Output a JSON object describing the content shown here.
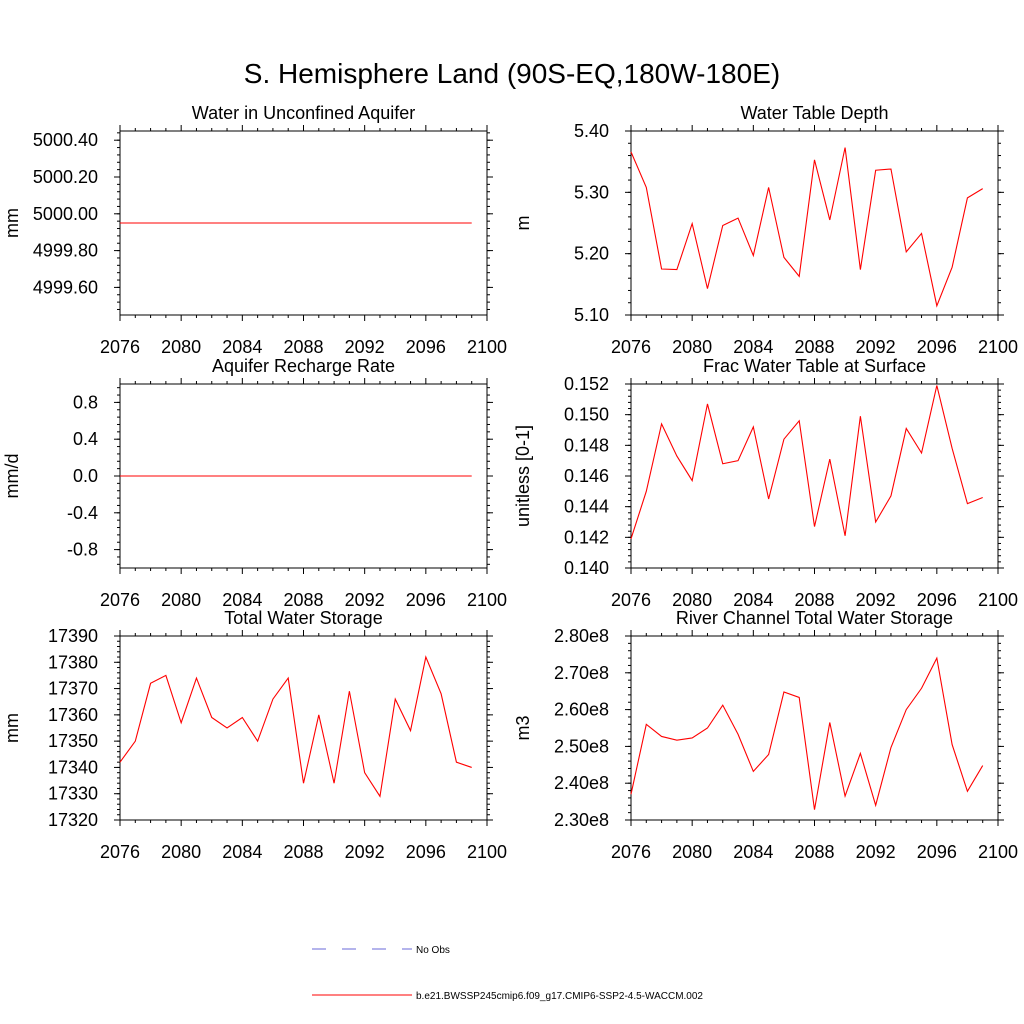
{
  "figure": {
    "title": "S. Hemisphere Land (90S-EQ,180W-180E)"
  },
  "legend": {
    "items": [
      {
        "label": "No Obs",
        "style": "dashed",
        "color": "#6a6ad8"
      },
      {
        "label": "b.e21.BWSSP245cmip6.f09_g17.CMIP6-SSP2-4.5-WACCM.002",
        "style": "solid",
        "color": "#ff0000"
      }
    ]
  },
  "chart_data": [
    {
      "type": "line",
      "title": "Water in Unconfined Aquifer",
      "xlabel": "",
      "ylabel": "mm",
      "xlim": [
        2076,
        2100
      ],
      "ylim": [
        4999.45,
        5000.45
      ],
      "xticks": [
        2076,
        2080,
        2084,
        2088,
        2092,
        2096,
        2100
      ],
      "xtick_labels": [
        "2076",
        "2080",
        "2084",
        "2088",
        "2092",
        "2096",
        "2100"
      ],
      "yticks": [
        4999.6,
        4999.8,
        5000.0,
        5000.2,
        5000.4
      ],
      "ytick_labels": [
        "4999.60",
        "4999.80",
        "5000.00",
        "5000.20",
        "5000.40"
      ],
      "series": [
        {
          "name": "b.e21.BWSSP245cmip6.f09_g17.CMIP6-SSP2-4.5-WACCM.002",
          "color": "#ff0000",
          "x": [
            2076,
            2077,
            2078,
            2079,
            2080,
            2081,
            2082,
            2083,
            2084,
            2085,
            2086,
            2087,
            2088,
            2089,
            2090,
            2091,
            2092,
            2093,
            2094,
            2095,
            2096,
            2097,
            2098,
            2099
          ],
          "y": [
            4999.95,
            4999.95,
            4999.95,
            4999.95,
            4999.95,
            4999.95,
            4999.95,
            4999.95,
            4999.95,
            4999.95,
            4999.95,
            4999.95,
            4999.95,
            4999.95,
            4999.95,
            4999.95,
            4999.95,
            4999.95,
            4999.95,
            4999.95,
            4999.95,
            4999.95,
            4999.95,
            4999.95
          ]
        }
      ]
    },
    {
      "type": "line",
      "title": "Water Table Depth",
      "xlabel": "",
      "ylabel": "m",
      "xlim": [
        2076,
        2100
      ],
      "ylim": [
        5.1,
        5.4
      ],
      "xticks": [
        2076,
        2080,
        2084,
        2088,
        2092,
        2096,
        2100
      ],
      "xtick_labels": [
        "2076",
        "2080",
        "2084",
        "2088",
        "2092",
        "2096",
        "2100"
      ],
      "yticks": [
        5.1,
        5.2,
        5.3,
        5.4
      ],
      "ytick_labels": [
        "5.10",
        "5.20",
        "5.30",
        "5.40"
      ],
      "series": [
        {
          "name": "b.e21.BWSSP245cmip6.f09_g17.CMIP6-SSP2-4.5-WACCM.002",
          "color": "#ff0000",
          "x": [
            2076,
            2077,
            2078,
            2079,
            2080,
            2081,
            2082,
            2083,
            2084,
            2085,
            2086,
            2087,
            2088,
            2089,
            2090,
            2091,
            2092,
            2093,
            2094,
            2095,
            2096,
            2097,
            2098,
            2099
          ],
          "y": [
            5.366,
            5.308,
            5.175,
            5.174,
            5.249,
            5.143,
            5.246,
            5.258,
            5.197,
            5.308,
            5.194,
            5.163,
            5.353,
            5.255,
            5.373,
            5.174,
            5.336,
            5.338,
            5.203,
            5.233,
            5.115,
            5.178,
            5.291,
            5.306
          ]
        }
      ]
    },
    {
      "type": "line",
      "title": "Aquifer Recharge Rate",
      "xlabel": "",
      "ylabel": "mm/d",
      "xlim": [
        2076,
        2100
      ],
      "ylim": [
        -1.0,
        1.0
      ],
      "xticks": [
        2076,
        2080,
        2084,
        2088,
        2092,
        2096,
        2100
      ],
      "xtick_labels": [
        "2076",
        "2080",
        "2084",
        "2088",
        "2092",
        "2096",
        "2100"
      ],
      "yticks": [
        -0.8,
        -0.4,
        0.0,
        0.4,
        0.8
      ],
      "ytick_labels": [
        "-0.8",
        "-0.4",
        "0.0",
        "0.4",
        "0.8"
      ],
      "series": [
        {
          "name": "b.e21.BWSSP245cmip6.f09_g17.CMIP6-SSP2-4.5-WACCM.002",
          "color": "#ff0000",
          "x": [
            2076,
            2077,
            2078,
            2079,
            2080,
            2081,
            2082,
            2083,
            2084,
            2085,
            2086,
            2087,
            2088,
            2089,
            2090,
            2091,
            2092,
            2093,
            2094,
            2095,
            2096,
            2097,
            2098,
            2099
          ],
          "y": [
            0,
            0,
            0,
            0,
            0,
            0,
            0,
            0,
            0,
            0,
            0,
            0,
            0,
            0,
            0,
            0,
            0,
            0,
            0,
            0,
            0,
            0,
            0,
            0
          ]
        }
      ]
    },
    {
      "type": "line",
      "title": "Frac Water Table at Surface",
      "xlabel": "",
      "ylabel": "unitless [0-1]",
      "xlim": [
        2076,
        2100
      ],
      "ylim": [
        0.14,
        0.152
      ],
      "xticks": [
        2076,
        2080,
        2084,
        2088,
        2092,
        2096,
        2100
      ],
      "xtick_labels": [
        "2076",
        "2080",
        "2084",
        "2088",
        "2092",
        "2096",
        "2100"
      ],
      "yticks": [
        0.14,
        0.142,
        0.144,
        0.146,
        0.148,
        0.15,
        0.152
      ],
      "ytick_labels": [
        "0.140",
        "0.142",
        "0.144",
        "0.146",
        "0.148",
        "0.150",
        "0.152"
      ],
      "series": [
        {
          "name": "b.e21.BWSSP245cmip6.f09_g17.CMIP6-SSP2-4.5-WACCM.002",
          "color": "#ff0000",
          "x": [
            2076,
            2077,
            2078,
            2079,
            2080,
            2081,
            2082,
            2083,
            2084,
            2085,
            2086,
            2087,
            2088,
            2089,
            2090,
            2091,
            2092,
            2093,
            2094,
            2095,
            2096,
            2097,
            2098,
            2099
          ],
          "y": [
            0.1419,
            0.145,
            0.1494,
            0.1473,
            0.1457,
            0.1507,
            0.1468,
            0.147,
            0.1492,
            0.1445,
            0.1484,
            0.1496,
            0.1427,
            0.1471,
            0.1421,
            0.1499,
            0.143,
            0.1447,
            0.1491,
            0.1475,
            0.1519,
            0.1478,
            0.1442,
            0.1446
          ]
        }
      ]
    },
    {
      "type": "line",
      "title": "Total Water Storage",
      "xlabel": "",
      "ylabel": "mm",
      "xlim": [
        2076,
        2100
      ],
      "ylim": [
        17320,
        17390
      ],
      "xticks": [
        2076,
        2080,
        2084,
        2088,
        2092,
        2096,
        2100
      ],
      "xtick_labels": [
        "2076",
        "2080",
        "2084",
        "2088",
        "2092",
        "2096",
        "2100"
      ],
      "yticks": [
        17320,
        17330,
        17340,
        17350,
        17360,
        17370,
        17380,
        17390
      ],
      "ytick_labels": [
        "17320",
        "17330",
        "17340",
        "17350",
        "17360",
        "17370",
        "17380",
        "17390"
      ],
      "series": [
        {
          "name": "b.e21.BWSSP245cmip6.f09_g17.CMIP6-SSP2-4.5-WACCM.002",
          "color": "#ff0000",
          "x": [
            2076,
            2077,
            2078,
            2079,
            2080,
            2081,
            2082,
            2083,
            2084,
            2085,
            2086,
            2087,
            2088,
            2089,
            2090,
            2091,
            2092,
            2093,
            2094,
            2095,
            2096,
            2097,
            2098,
            2099
          ],
          "y": [
            17342,
            17350,
            17372,
            17375,
            17357,
            17374,
            17359,
            17355,
            17359,
            17350,
            17366,
            17374,
            17334,
            17360,
            17334,
            17369,
            17338,
            17329,
            17366,
            17354,
            17382,
            17368,
            17342,
            17340
          ]
        }
      ]
    },
    {
      "type": "line",
      "title": "River Channel Total Water Storage",
      "xlabel": "",
      "ylabel": "m3",
      "xlim": [
        2076,
        2100
      ],
      "ylim": [
        230000000,
        280000000
      ],
      "xticks": [
        2076,
        2080,
        2084,
        2088,
        2092,
        2096,
        2100
      ],
      "xtick_labels": [
        "2076",
        "2080",
        "2084",
        "2088",
        "2092",
        "2096",
        "2100"
      ],
      "yticks": [
        230000000,
        240000000,
        250000000,
        260000000,
        270000000,
        280000000
      ],
      "ytick_labels": [
        "2.30e8",
        "2.40e8",
        "2.50e8",
        "2.60e8",
        "2.70e8",
        "2.80e8"
      ],
      "series": [
        {
          "name": "b.e21.BWSSP245cmip6.f09_g17.CMIP6-SSP2-4.5-WACCM.002",
          "color": "#ff0000",
          "x": [
            2076,
            2077,
            2078,
            2079,
            2080,
            2081,
            2082,
            2083,
            2084,
            2085,
            2086,
            2087,
            2088,
            2089,
            2090,
            2091,
            2092,
            2093,
            2094,
            2095,
            2096,
            2097,
            2098,
            2099
          ],
          "y": [
            237000000,
            256000000,
            252700000,
            251700000,
            252300000,
            255000000,
            261200000,
            253300000,
            243200000,
            247800000,
            264800000,
            263300000,
            232800000,
            256500000,
            236500000,
            248100000,
            234000000,
            249700000,
            260000000,
            265800000,
            274000000,
            250500000,
            237800000,
            244800000
          ]
        }
      ]
    }
  ]
}
